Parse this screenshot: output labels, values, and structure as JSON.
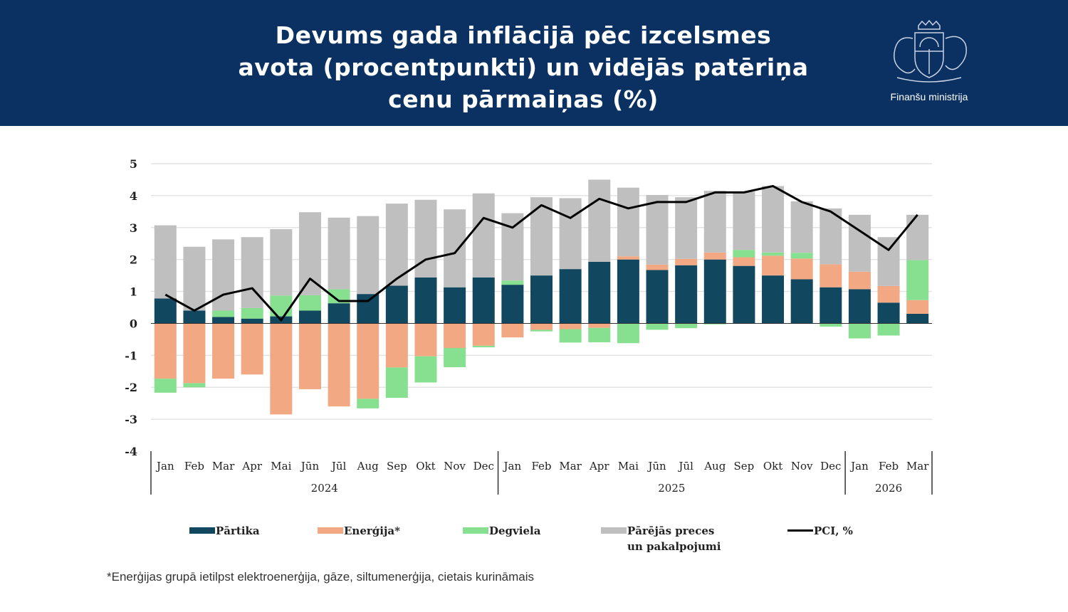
{
  "header": {
    "title_lines": [
      "Devums gada inflācijā pēc izcelsmes",
      "avota (procentpunkti) un vidējās patēriņa",
      "cenu pārmaiņas (%)"
    ],
    "logo_text": "Finanšu ministrija",
    "background_color": "#0b3162"
  },
  "chart_data": {
    "type": "bar",
    "stacked": true,
    "title": "",
    "xlabel": "",
    "ylabel": "",
    "ylim": [
      -4,
      5
    ],
    "yticks": [
      5,
      4,
      3,
      2,
      1,
      0,
      -1,
      -2,
      -3,
      -4
    ],
    "ytick_labels": [
      "5",
      "4",
      "3",
      "2",
      "1",
      "0",
      "-1",
      "-2",
      "-3",
      "-4"
    ],
    "grid": true,
    "legend_position": "bottom",
    "categories": [
      "Jan",
      "Feb",
      "Mar",
      "Apr",
      "Mai",
      "Jūn",
      "Jūl",
      "Aug",
      "Sep",
      "Okt",
      "Nov",
      "Dec",
      "Jan",
      "Feb",
      "Mar",
      "Apr",
      "Mai",
      "Jūn",
      "Jūl",
      "Aug",
      "Sep",
      "Okt",
      "Nov",
      "Dec",
      "Jan",
      "Feb",
      "Mar"
    ],
    "year_groups": [
      {
        "label": "2024",
        "count": 12
      },
      {
        "label": "2025",
        "count": 12
      },
      {
        "label": "2026",
        "count": 3
      }
    ],
    "series": [
      {
        "name": "Pārtika",
        "color": "#11475f",
        "values": [
          0.78,
          0.4,
          0.2,
          0.15,
          0.22,
          0.4,
          0.63,
          0.92,
          1.18,
          1.44,
          1.13,
          1.44,
          1.21,
          1.5,
          1.7,
          1.93,
          2.0,
          1.67,
          1.82,
          2.0,
          1.8,
          1.5,
          1.38,
          1.13,
          1.07,
          0.65,
          0.3
        ]
      },
      {
        "name": "Enerģija*",
        "color": "#f1a883",
        "values": [
          -1.73,
          -1.87,
          -1.73,
          -1.6,
          -2.85,
          -2.06,
          -2.6,
          -2.36,
          -1.38,
          -1.03,
          -0.77,
          -0.7,
          -0.44,
          -0.2,
          -0.18,
          -0.14,
          0.1,
          0.17,
          0.2,
          0.22,
          0.27,
          0.62,
          0.65,
          0.72,
          0.55,
          0.52,
          0.43
        ]
      },
      {
        "name": "Degviela",
        "color": "#86e08f",
        "values": [
          -0.44,
          -0.13,
          0.2,
          0.33,
          0.65,
          0.48,
          0.44,
          -0.3,
          -0.95,
          -0.82,
          -0.6,
          -0.05,
          0.13,
          -0.05,
          -0.42,
          -0.45,
          -0.62,
          -0.2,
          -0.15,
          -0.03,
          0.23,
          0.1,
          0.18,
          -0.1,
          -0.47,
          -0.38,
          1.25
        ]
      },
      {
        "name": "Pārējās preces un pakalpojumi",
        "name_lines": [
          "Pārējās preces",
          "un pakalpojumi"
        ],
        "color": "#bfbfbf",
        "values": [
          2.29,
          2.0,
          2.23,
          2.22,
          2.08,
          2.6,
          2.24,
          2.44,
          2.57,
          2.43,
          2.44,
          2.63,
          2.11,
          2.45,
          2.22,
          2.57,
          2.15,
          2.18,
          1.93,
          1.93,
          1.82,
          2.08,
          1.61,
          1.75,
          1.78,
          1.53,
          1.42
        ]
      }
    ],
    "line_series": {
      "name": "PCI, %",
      "color": "#000000",
      "values": [
        0.9,
        0.4,
        0.9,
        1.1,
        0.1,
        1.4,
        0.7,
        0.7,
        1.4,
        2.0,
        2.2,
        3.3,
        3.0,
        3.7,
        3.3,
        3.9,
        3.6,
        3.8,
        3.8,
        4.1,
        4.1,
        4.3,
        3.8,
        3.5,
        2.9,
        2.3,
        3.4
      ]
    }
  },
  "footnote": "*Enerģijas grupā ietilpst elektroenerģija, gāze, siltumenerģija, cietais kurināmais"
}
